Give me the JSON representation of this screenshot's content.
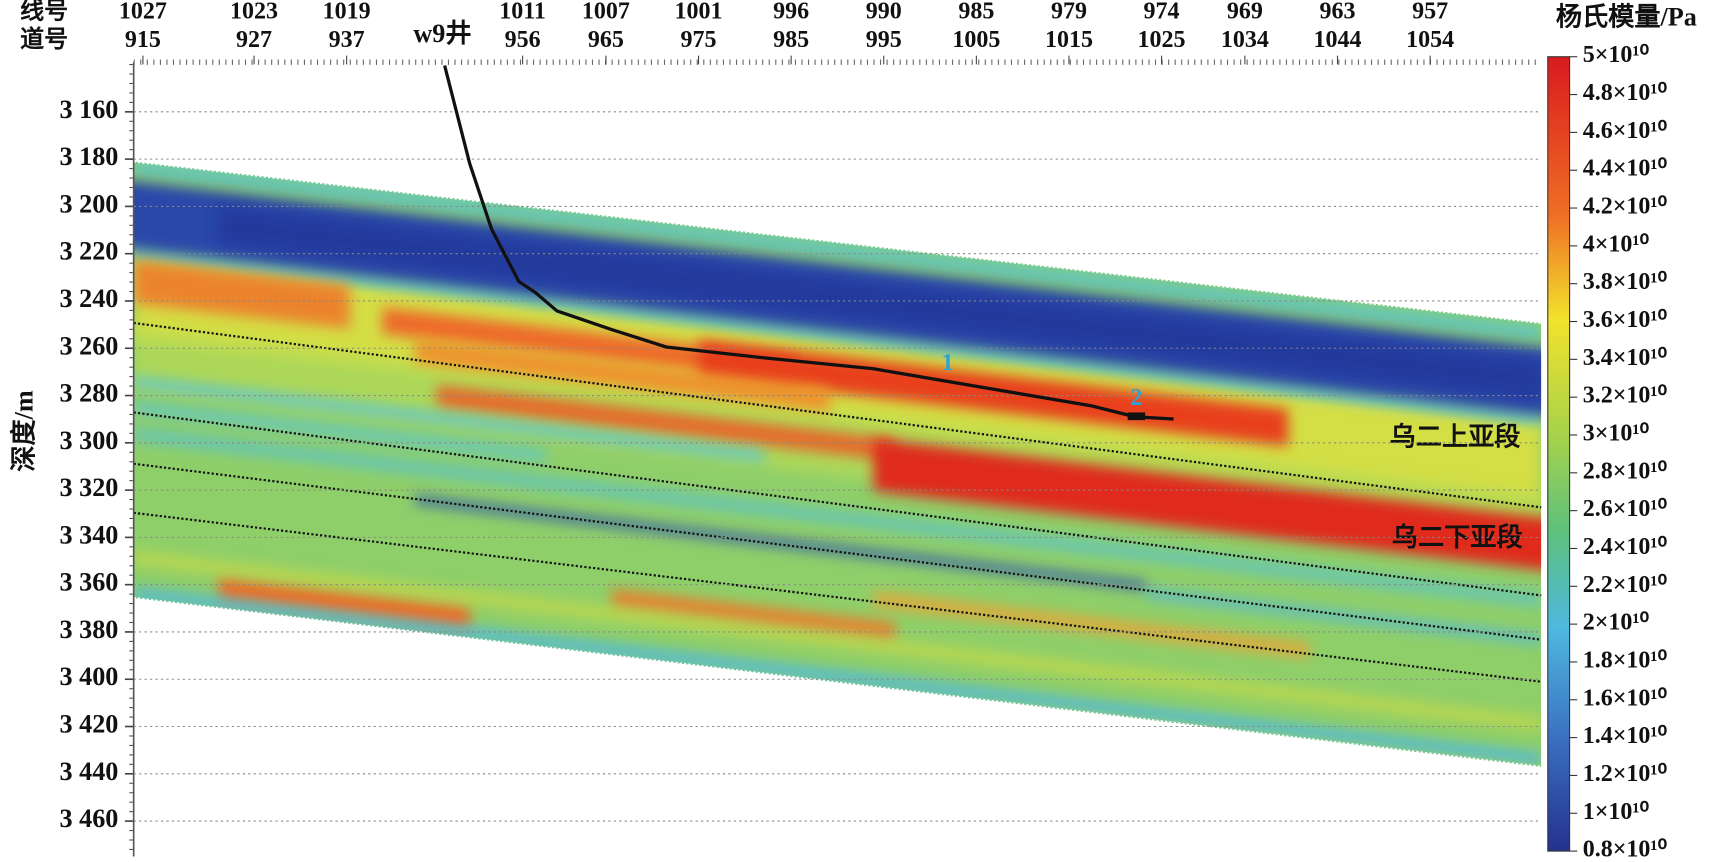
{
  "chart_data": {
    "type": "section",
    "top_axis": {
      "row_labels": [
        "线号",
        "道号"
      ],
      "line_numbers": [
        1027,
        1023,
        1019,
        1011,
        1007,
        1001,
        996,
        990,
        985,
        979,
        974,
        969,
        963,
        957
      ],
      "trace_numbers": [
        915,
        927,
        937,
        956,
        965,
        975,
        985,
        995,
        1005,
        1015,
        1025,
        1034,
        1044,
        1054
      ],
      "xlim": [
        914,
        1066
      ]
    },
    "ylabel": "深度/m",
    "ylim": [
      3139,
      3475
    ],
    "yticks": [
      {
        "value": 3160,
        "label": "3 160"
      },
      {
        "value": 3180,
        "label": "3 180"
      },
      {
        "value": 3200,
        "label": "3 200"
      },
      {
        "value": 3220,
        "label": "3 220"
      },
      {
        "value": 3240,
        "label": "3 240"
      },
      {
        "value": 3260,
        "label": "3 260"
      },
      {
        "value": 3280,
        "label": "3 280"
      },
      {
        "value": 3300,
        "label": "3 300"
      },
      {
        "value": 3320,
        "label": "3 320"
      },
      {
        "value": 3340,
        "label": "3 340"
      },
      {
        "value": 3360,
        "label": "3 360"
      },
      {
        "value": 3380,
        "label": "3 380"
      },
      {
        "value": 3400,
        "label": "3 400"
      },
      {
        "value": 3420,
        "label": "3 420"
      },
      {
        "value": 3440,
        "label": "3 440"
      },
      {
        "value": 3460,
        "label": "3 460"
      }
    ],
    "grid": true,
    "colorbar": {
      "title": "杨氏模量/Pa",
      "clim": [
        8000000000,
        50000000000
      ],
      "ticks": [
        {
          "value": 50000000000,
          "label": "5×10¹⁰"
        },
        {
          "value": 48000000000,
          "label": "4.8×10¹⁰"
        },
        {
          "value": 46000000000,
          "label": "4.6×10¹⁰"
        },
        {
          "value": 44000000000,
          "label": "4.4×10¹⁰"
        },
        {
          "value": 42000000000,
          "label": "4.2×10¹⁰"
        },
        {
          "value": 40000000000,
          "label": "4×10¹⁰"
        },
        {
          "value": 38000000000,
          "label": "3.8×10¹⁰"
        },
        {
          "value": 36000000000,
          "label": "3.6×10¹⁰"
        },
        {
          "value": 34000000000,
          "label": "3.4×10¹⁰"
        },
        {
          "value": 32000000000,
          "label": "3.2×10¹⁰"
        },
        {
          "value": 30000000000,
          "label": "3×10¹⁰"
        },
        {
          "value": 28000000000,
          "label": "2.8×10¹⁰"
        },
        {
          "value": 26000000000,
          "label": "2.6×10¹⁰"
        },
        {
          "value": 24000000000,
          "label": "2.4×10¹⁰"
        },
        {
          "value": 22000000000,
          "label": "2.2×10¹⁰"
        },
        {
          "value": 20000000000,
          "label": "2×10¹⁰"
        },
        {
          "value": 18000000000,
          "label": "1.8×10¹⁰"
        },
        {
          "value": 16000000000,
          "label": "1.6×10¹⁰"
        },
        {
          "value": 14000000000,
          "label": "1.4×10¹⁰"
        },
        {
          "value": 12000000000,
          "label": "1.2×10¹⁰"
        },
        {
          "value": 10000000000,
          "label": "1×10¹⁰"
        },
        {
          "value": 8000000000,
          "label": "0.8×10¹⁰"
        }
      ]
    },
    "well": {
      "name": "w9井",
      "markers": [
        "1",
        "2"
      ]
    },
    "zones": [
      "乌二上亚段",
      "乌二下亚段"
    ]
  }
}
